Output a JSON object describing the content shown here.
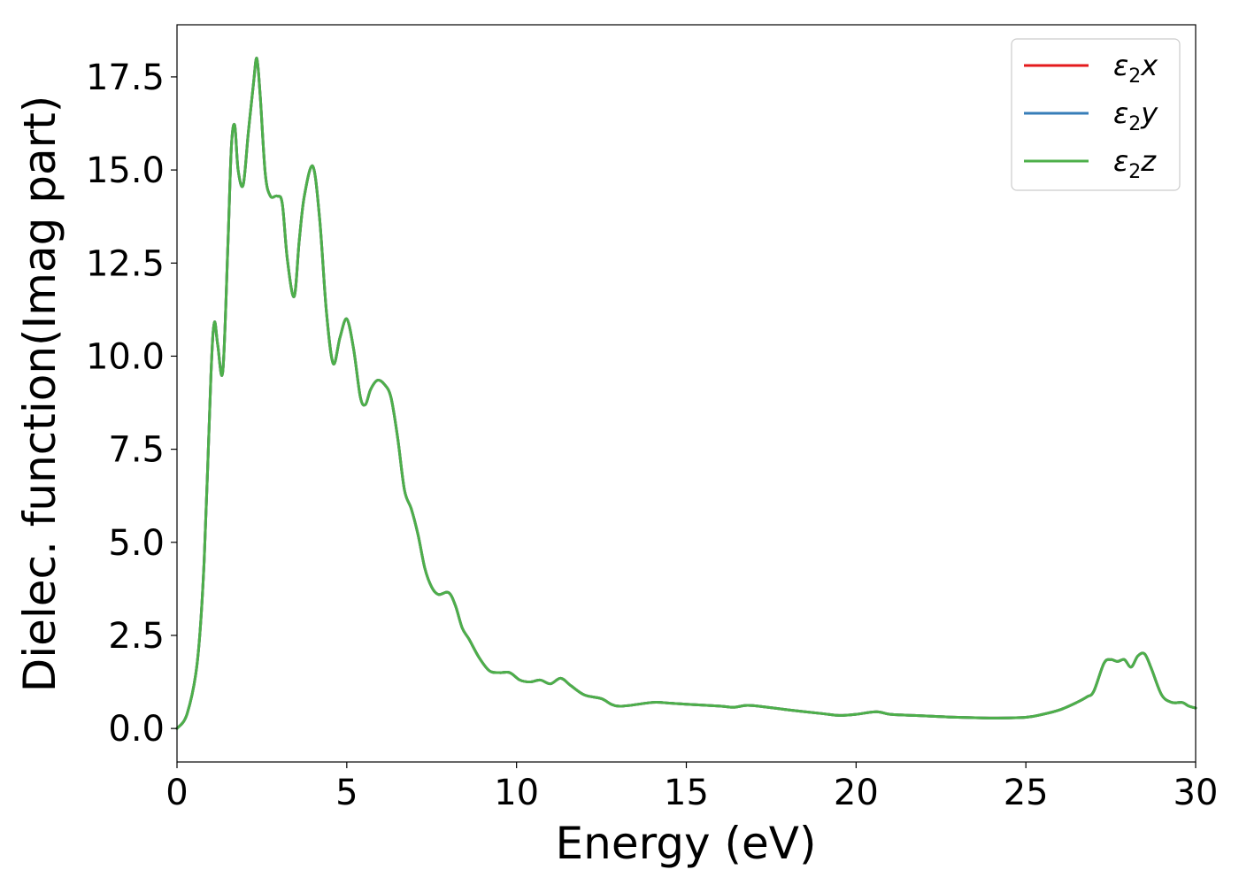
{
  "chart_data": {
    "type": "line",
    "xlabel": "Energy (eV)",
    "ylabel": "Dielec. function(Imag part)",
    "xlim": [
      0,
      30
    ],
    "ylim": [
      -0.9,
      18.9
    ],
    "xticks": [
      0,
      5,
      10,
      15,
      20,
      25,
      30
    ],
    "xtick_labels": [
      "0",
      "5",
      "10",
      "15",
      "20",
      "25",
      "30"
    ],
    "yticks": [
      0,
      2.5,
      5,
      7.5,
      10,
      12.5,
      15,
      17.5
    ],
    "ytick_labels": [
      "0.0",
      "2.5",
      "5.0",
      "7.5",
      "10.0",
      "12.5",
      "15.0",
      "17.5"
    ],
    "grid": false,
    "legend_position": "top-right",
    "x": [
      0,
      0.3,
      0.6,
      0.8,
      1.0,
      1.1,
      1.2,
      1.35,
      1.5,
      1.6,
      1.7,
      1.8,
      1.95,
      2.1,
      2.25,
      2.35,
      2.45,
      2.6,
      2.75,
      2.95,
      3.1,
      3.25,
      3.45,
      3.6,
      3.75,
      4.0,
      4.2,
      4.4,
      4.6,
      4.8,
      5.0,
      5.2,
      5.4,
      5.55,
      5.7,
      5.9,
      6.1,
      6.3,
      6.5,
      6.7,
      6.9,
      7.1,
      7.3,
      7.5,
      7.7,
      8.0,
      8.2,
      8.4,
      8.6,
      8.9,
      9.2,
      9.5,
      9.8,
      10.1,
      10.4,
      10.7,
      11.0,
      11.3,
      11.6,
      12.0,
      12.5,
      13.0,
      14.0,
      14.5,
      15.0,
      16.0,
      16.4,
      16.8,
      17.3,
      18.0,
      19.0,
      19.5,
      20.0,
      20.6,
      21.0,
      21.7,
      22.2,
      23.0,
      24.0,
      25.0,
      25.5,
      26.0,
      26.5,
      26.8,
      27.0,
      27.3,
      27.5,
      27.7,
      27.9,
      28.1,
      28.3,
      28.5,
      28.7,
      29.0,
      29.3,
      29.6,
      29.8,
      30.0
    ],
    "series": [
      {
        "name": "ε₂x",
        "color": "#e41a1c",
        "values": [
          0.0,
          0.4,
          1.8,
          4.5,
          9.5,
          10.9,
          10.3,
          9.6,
          13.0,
          15.6,
          16.2,
          15.0,
          14.6,
          16.0,
          17.3,
          18.0,
          17.0,
          14.9,
          14.3,
          14.3,
          14.1,
          12.6,
          11.6,
          13.1,
          14.3,
          15.1,
          13.7,
          11.2,
          9.8,
          10.5,
          11.0,
          10.2,
          8.9,
          8.7,
          9.1,
          9.35,
          9.25,
          8.9,
          7.8,
          6.4,
          5.9,
          5.2,
          4.3,
          3.8,
          3.6,
          3.65,
          3.3,
          2.7,
          2.4,
          1.9,
          1.55,
          1.5,
          1.5,
          1.3,
          1.25,
          1.3,
          1.2,
          1.35,
          1.15,
          0.9,
          0.8,
          0.6,
          0.7,
          0.68,
          0.65,
          0.6,
          0.57,
          0.62,
          0.58,
          0.5,
          0.4,
          0.35,
          0.38,
          0.45,
          0.38,
          0.35,
          0.33,
          0.3,
          0.28,
          0.3,
          0.38,
          0.5,
          0.7,
          0.85,
          1.0,
          1.75,
          1.85,
          1.8,
          1.85,
          1.65,
          1.95,
          2.0,
          1.6,
          0.9,
          0.7,
          0.7,
          0.6,
          0.55
        ]
      },
      {
        "name": "ε₂y",
        "color": "#377eb8",
        "values": [
          0.0,
          0.4,
          1.8,
          4.5,
          9.5,
          10.9,
          10.3,
          9.6,
          13.0,
          15.6,
          16.2,
          15.0,
          14.6,
          16.0,
          17.3,
          18.0,
          17.0,
          14.9,
          14.3,
          14.3,
          14.1,
          12.6,
          11.6,
          13.1,
          14.3,
          15.1,
          13.7,
          11.2,
          9.8,
          10.5,
          11.0,
          10.2,
          8.9,
          8.7,
          9.1,
          9.35,
          9.25,
          8.9,
          7.8,
          6.4,
          5.9,
          5.2,
          4.3,
          3.8,
          3.6,
          3.65,
          3.3,
          2.7,
          2.4,
          1.9,
          1.55,
          1.5,
          1.5,
          1.3,
          1.25,
          1.3,
          1.2,
          1.35,
          1.15,
          0.9,
          0.8,
          0.6,
          0.7,
          0.68,
          0.65,
          0.6,
          0.57,
          0.62,
          0.58,
          0.5,
          0.4,
          0.35,
          0.38,
          0.45,
          0.38,
          0.35,
          0.33,
          0.3,
          0.28,
          0.3,
          0.38,
          0.5,
          0.7,
          0.85,
          1.0,
          1.75,
          1.85,
          1.8,
          1.85,
          1.65,
          1.95,
          2.0,
          1.6,
          0.9,
          0.7,
          0.7,
          0.6,
          0.55
        ]
      },
      {
        "name": "ε₂z",
        "color": "#4daf4a",
        "values": [
          0.0,
          0.4,
          1.8,
          4.5,
          9.5,
          10.9,
          10.3,
          9.6,
          13.0,
          15.6,
          16.2,
          15.0,
          14.6,
          16.0,
          17.3,
          18.0,
          17.0,
          14.9,
          14.3,
          14.3,
          14.1,
          12.6,
          11.6,
          13.1,
          14.3,
          15.1,
          13.7,
          11.2,
          9.8,
          10.5,
          11.0,
          10.2,
          8.9,
          8.7,
          9.1,
          9.35,
          9.25,
          8.9,
          7.8,
          6.4,
          5.9,
          5.2,
          4.3,
          3.8,
          3.6,
          3.65,
          3.3,
          2.7,
          2.4,
          1.9,
          1.55,
          1.5,
          1.5,
          1.3,
          1.25,
          1.3,
          1.2,
          1.35,
          1.15,
          0.9,
          0.8,
          0.6,
          0.7,
          0.68,
          0.65,
          0.6,
          0.57,
          0.62,
          0.58,
          0.5,
          0.4,
          0.35,
          0.38,
          0.45,
          0.38,
          0.35,
          0.33,
          0.3,
          0.28,
          0.3,
          0.38,
          0.5,
          0.7,
          0.85,
          1.0,
          1.75,
          1.85,
          1.8,
          1.85,
          1.65,
          1.95,
          2.0,
          1.6,
          0.9,
          0.7,
          0.7,
          0.6,
          0.55
        ]
      }
    ],
    "legend": [
      {
        "base": "ε",
        "sub": "2",
        "var": "x"
      },
      {
        "base": "ε",
        "sub": "2",
        "var": "y"
      },
      {
        "base": "ε",
        "sub": "2",
        "var": "z"
      }
    ]
  }
}
